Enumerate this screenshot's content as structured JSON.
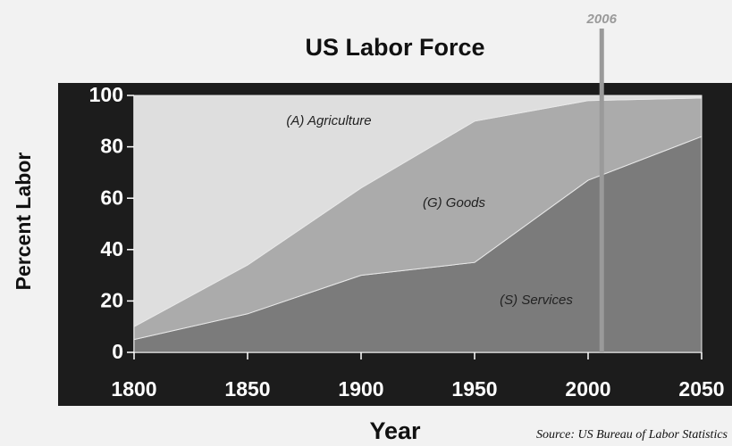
{
  "chart_data": {
    "type": "stacked_area",
    "title": "US Labor Force",
    "x_label": "Year",
    "y_label": "Percent Labor",
    "source": "Source: US Bureau of Labor Statistics",
    "x": [
      1800,
      1850,
      1900,
      1950,
      2000,
      2050
    ],
    "series": [
      {
        "name": "(S) Services",
        "color": "#7b7b7b",
        "values": [
          5,
          15,
          30,
          35,
          67,
          84
        ]
      },
      {
        "name": "(G) Goods",
        "color": "#ababab",
        "values": [
          5,
          19,
          34,
          55,
          31,
          15
        ]
      },
      {
        "name": "(A) Agriculture",
        "color": "#dedede",
        "values": [
          90,
          66,
          36,
          10,
          2,
          1
        ]
      }
    ],
    "marker": {
      "x": 2006,
      "color": "#9a9a9a"
    },
    "xlim": [
      1800,
      2050
    ],
    "ylim": [
      0,
      100
    ],
    "xticks": [
      1800,
      1850,
      1900,
      1950,
      2000,
      2050
    ],
    "yticks": [
      0,
      20,
      40,
      60,
      80,
      100
    ],
    "grid": false
  }
}
